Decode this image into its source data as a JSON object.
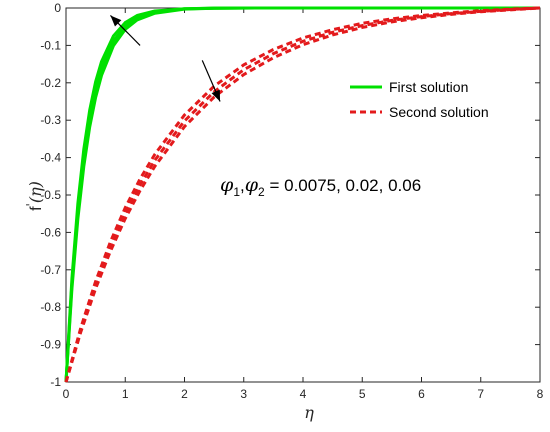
{
  "chart_data": {
    "type": "line",
    "xlabel": "η",
    "ylabel_main": "f",
    "ylabel_prime": "'",
    "ylabel_arg": "(η)",
    "xlim": [
      0,
      8
    ],
    "ylim": [
      -1,
      0
    ],
    "x_ticks": [
      0,
      1,
      2,
      3,
      4,
      5,
      6,
      7,
      8
    ],
    "y_ticks": [
      0,
      -0.1,
      -0.2,
      -0.3,
      -0.4,
      -0.5,
      -0.6,
      -0.7,
      -0.8,
      -0.9,
      -1
    ],
    "x_tick_labels": [
      "0",
      "1",
      "2",
      "3",
      "4",
      "5",
      "6",
      "7",
      "8"
    ],
    "y_tick_labels": [
      "0",
      "-0.1",
      "-0.2",
      "-0.3",
      "-0.4",
      "-0.5",
      "-0.6",
      "-0.7",
      "-0.8",
      "-0.9",
      "-1"
    ],
    "legend_placement": "upper-right",
    "grid": false,
    "series": [
      {
        "name": "First solution",
        "group": "first",
        "style": "solid",
        "color": "#00e000",
        "x": [
          0,
          0.1,
          0.2,
          0.3,
          0.4,
          0.5,
          0.6,
          0.8,
          1.0,
          1.2,
          1.5,
          2.0,
          2.5,
          3.0,
          4.0,
          5.0,
          6.0,
          7.0,
          8.0
        ],
        "y": [
          -1,
          -0.723,
          -0.523,
          -0.378,
          -0.273,
          -0.197,
          -0.143,
          -0.075,
          -0.039,
          -0.02,
          -0.008,
          -0.002,
          -0.0004,
          -0.0001,
          0,
          0,
          0,
          0,
          0
        ]
      },
      {
        "name": "",
        "group": "first",
        "style": "solid",
        "color": "#00e000",
        "x": [
          0,
          0.1,
          0.2,
          0.3,
          0.4,
          0.5,
          0.6,
          0.8,
          1.0,
          1.2,
          1.5,
          2.0,
          2.5,
          3.0,
          4.0,
          5.0,
          6.0,
          7.0,
          8.0
        ],
        "y": [
          -1,
          -0.738,
          -0.545,
          -0.402,
          -0.297,
          -0.219,
          -0.162,
          -0.088,
          -0.048,
          -0.026,
          -0.011,
          -0.002,
          -0.0006,
          -0.0001,
          0,
          0,
          0,
          0,
          0
        ]
      },
      {
        "name": "",
        "group": "first",
        "style": "solid",
        "color": "#00e000",
        "x": [
          0,
          0.1,
          0.2,
          0.3,
          0.4,
          0.5,
          0.6,
          0.8,
          1.0,
          1.2,
          1.5,
          2.0,
          2.5,
          3.0,
          4.0,
          5.0,
          6.0,
          7.0,
          8.0
        ],
        "y": [
          -1,
          -0.751,
          -0.564,
          -0.424,
          -0.318,
          -0.239,
          -0.18,
          -0.101,
          -0.057,
          -0.032,
          -0.014,
          -0.003,
          -0.0008,
          -0.0002,
          0,
          0,
          0,
          0,
          0
        ]
      },
      {
        "name": "Second solution",
        "group": "second",
        "style": "dashed",
        "color": "#e31a1c",
        "x": [
          0,
          0.25,
          0.5,
          0.75,
          1.0,
          1.25,
          1.5,
          2.0,
          2.5,
          3.0,
          3.5,
          4.0,
          4.5,
          5.0,
          5.5,
          6.0,
          6.5,
          7.0,
          7.5,
          8.0
        ],
        "y": [
          -1,
          -0.855,
          -0.731,
          -0.625,
          -0.534,
          -0.457,
          -0.391,
          -0.286,
          -0.209,
          -0.152,
          -0.111,
          -0.08,
          -0.058,
          -0.041,
          -0.029,
          -0.02,
          -0.013,
          -0.007,
          -0.003,
          0
        ]
      },
      {
        "name": "",
        "group": "second",
        "style": "dashed",
        "color": "#e31a1c",
        "x": [
          0,
          0.25,
          0.5,
          0.75,
          1.0,
          1.25,
          1.5,
          2.0,
          2.5,
          3.0,
          3.5,
          4.0,
          4.5,
          5.0,
          5.5,
          6.0,
          6.5,
          7.0,
          7.5,
          8.0
        ],
        "y": [
          -1,
          -0.861,
          -0.741,
          -0.638,
          -0.549,
          -0.473,
          -0.407,
          -0.302,
          -0.224,
          -0.165,
          -0.122,
          -0.089,
          -0.065,
          -0.047,
          -0.033,
          -0.023,
          -0.015,
          -0.009,
          -0.004,
          0
        ]
      },
      {
        "name": "",
        "group": "second",
        "style": "dashed",
        "color": "#e31a1c",
        "x": [
          0,
          0.25,
          0.5,
          0.75,
          1.0,
          1.25,
          1.5,
          2.0,
          2.5,
          3.0,
          3.5,
          4.0,
          4.5,
          5.0,
          5.5,
          6.0,
          6.5,
          7.0,
          7.5,
          8.0
        ],
        "y": [
          -1,
          -0.866,
          -0.75,
          -0.65,
          -0.563,
          -0.488,
          -0.423,
          -0.317,
          -0.238,
          -0.178,
          -0.133,
          -0.098,
          -0.072,
          -0.052,
          -0.037,
          -0.026,
          -0.017,
          -0.01,
          -0.005,
          0
        ]
      }
    ],
    "legend": [
      {
        "label": "First solution",
        "style": "solid",
        "color": "#00e000"
      },
      {
        "label": "Second solution",
        "style": "dashed",
        "color": "#e31a1c"
      }
    ],
    "annotation": {
      "phi": "φ",
      "sub1": "1",
      "sep": ",",
      "sub2": "2",
      "text": " = 0.0075, 0.02, 0.06"
    },
    "arrows": [
      {
        "name": "first-solution-arrow",
        "from": [
          1.25,
          -0.1
        ],
        "to": [
          0.75,
          -0.02
        ]
      },
      {
        "name": "second-solution-arrow",
        "from": [
          2.3,
          -0.14
        ],
        "to": [
          2.6,
          -0.25
        ]
      }
    ]
  }
}
